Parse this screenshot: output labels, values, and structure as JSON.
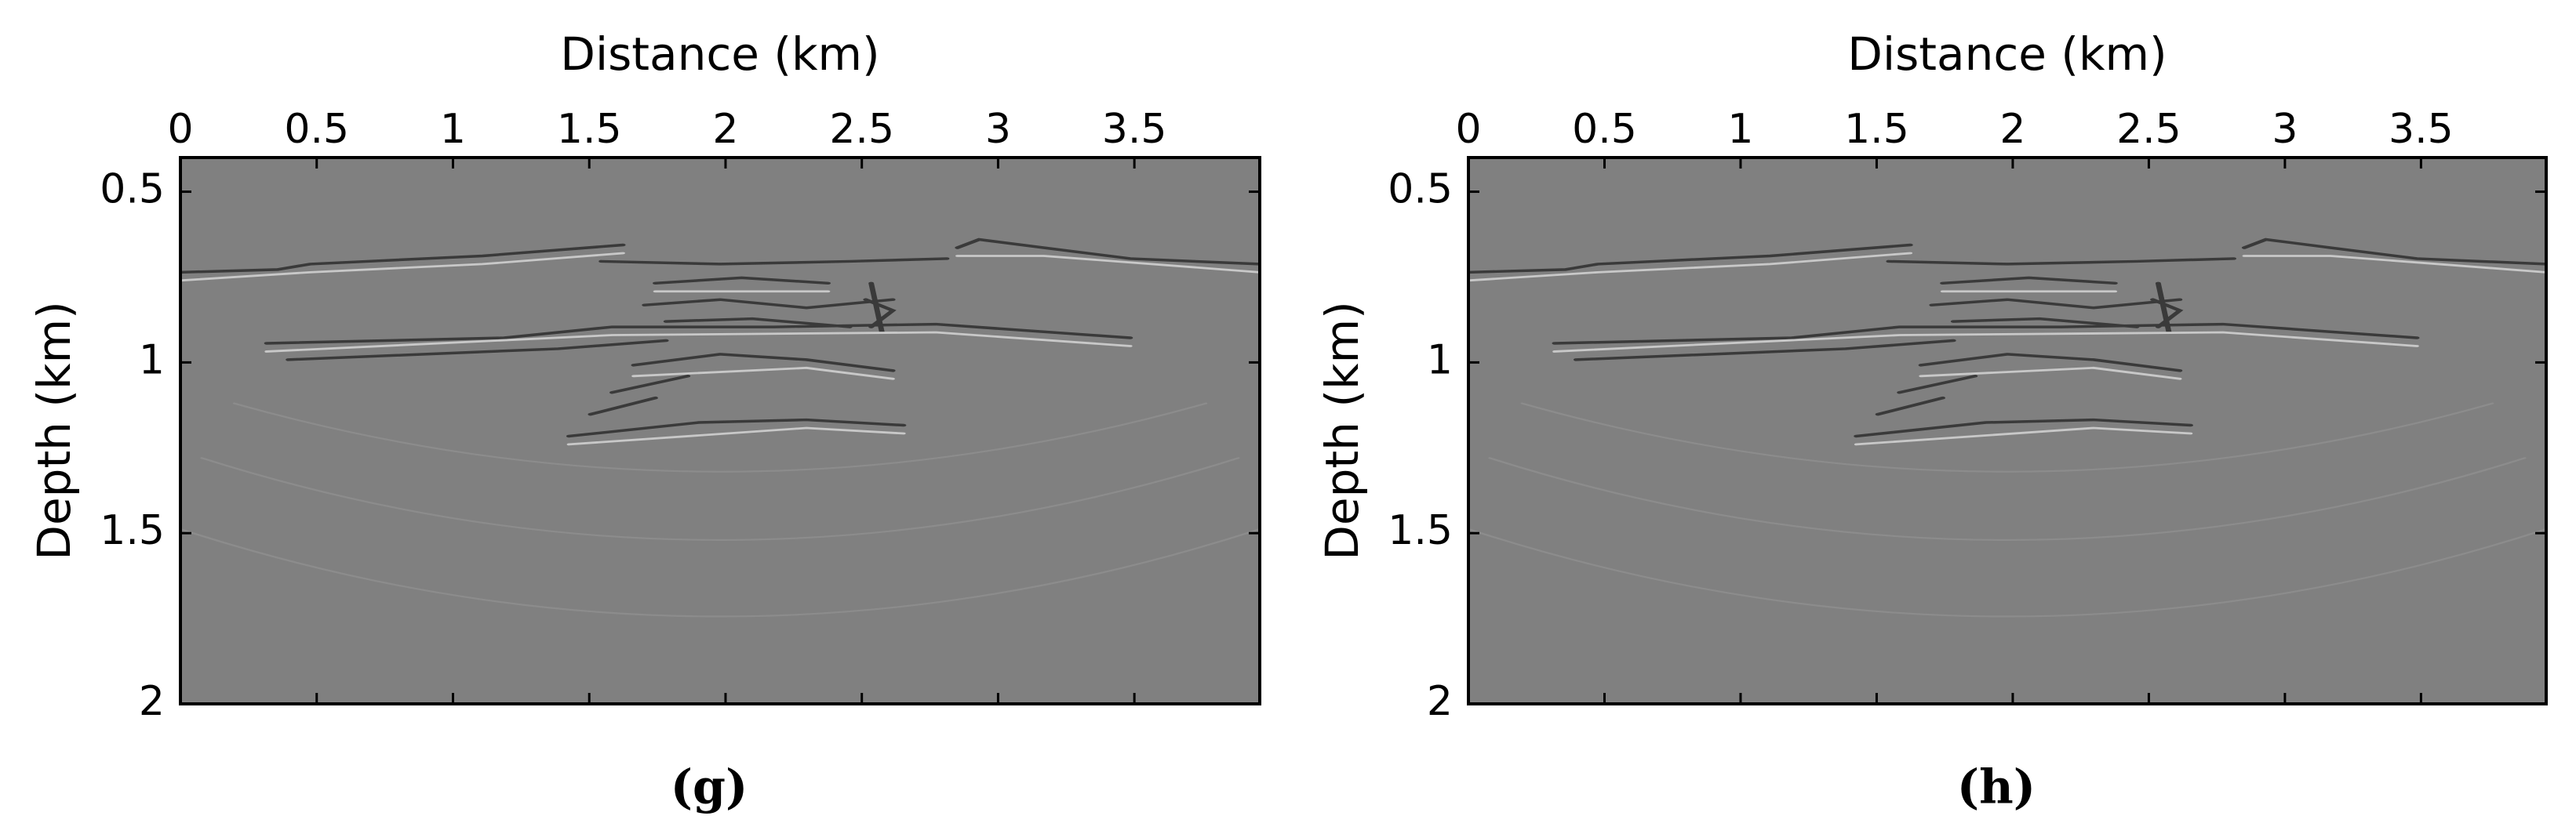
{
  "chart_data": [
    {
      "type": "image",
      "xlabel": "Distance (km)",
      "ylabel": "Depth (km)",
      "caption": "(g)",
      "xlim": [
        0,
        3.96
      ],
      "ylim": [
        0.4,
        2
      ],
      "xticks": [
        0,
        0.5,
        1,
        1.5,
        2,
        2.5,
        3,
        3.5
      ],
      "yticks": [
        0.5,
        1,
        1.5,
        2
      ],
      "y_reversed": true
    },
    {
      "type": "image",
      "xlabel": "Distance (km)",
      "ylabel": "Depth (km)",
      "caption": "(h)",
      "xlim": [
        0,
        3.96
      ],
      "ylim": [
        0.4,
        2
      ],
      "xticks": [
        0,
        0.5,
        1,
        1.5,
        2,
        2.5,
        3,
        3.5
      ],
      "yticks": [
        0.5,
        1,
        1.5,
        2
      ],
      "y_reversed": true
    }
  ]
}
